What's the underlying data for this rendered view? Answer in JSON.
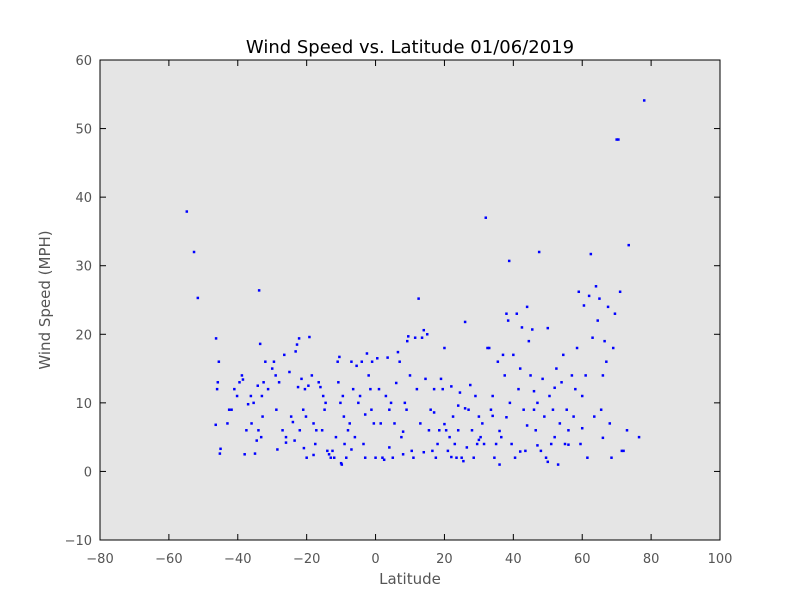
{
  "chart_data": {
    "type": "scatter",
    "title": "Wind Speed vs. Latitude 01/06/2019",
    "xlabel": "Latitude",
    "ylabel": "Wind Speed (MPH)",
    "xlim": [
      -80,
      100
    ],
    "ylim": [
      -10,
      60
    ],
    "xticks": [
      -80,
      -60,
      -40,
      -20,
      0,
      20,
      40,
      60,
      80,
      100
    ],
    "yticks": [
      -10,
      0,
      10,
      20,
      30,
      40,
      50,
      60
    ],
    "xtick_labels": [
      "−80",
      "−60",
      "−40",
      "−20",
      "0",
      "20",
      "40",
      "60",
      "80",
      "100"
    ],
    "ytick_labels": [
      "−10",
      "0",
      "10",
      "20",
      "30",
      "40",
      "50",
      "60"
    ],
    "grid": false,
    "colors": {
      "plot_background": "#e5e5e5",
      "marker": "#0000ff"
    },
    "series": [
      {
        "points": [
          [
            -54.8,
            37.9
          ],
          [
            -52.7,
            32.0
          ],
          [
            -51.6,
            25.3
          ],
          [
            -46.3,
            19.4
          ],
          [
            -46.0,
            12.0
          ],
          [
            -45.8,
            13.0
          ],
          [
            -45.5,
            16.0
          ],
          [
            -45.2,
            2.6
          ],
          [
            -45.0,
            3.3
          ],
          [
            -46.4,
            6.8
          ],
          [
            -43.0,
            7.0
          ],
          [
            -42.5,
            9.0
          ],
          [
            -41.8,
            9.0
          ],
          [
            -41.0,
            12.0
          ],
          [
            -40.2,
            11.0
          ],
          [
            -39.5,
            13.0
          ],
          [
            -38.8,
            14.0
          ],
          [
            -38.5,
            13.4
          ],
          [
            -38.0,
            2.5
          ],
          [
            -37.5,
            6.0
          ],
          [
            -37.0,
            9.8
          ],
          [
            -36.2,
            11.0
          ],
          [
            -36.0,
            7.0
          ],
          [
            -35.4,
            10.0
          ],
          [
            -35.0,
            2.6
          ],
          [
            -34.5,
            4.5
          ],
          [
            -34.2,
            12.5
          ],
          [
            -34.0,
            6.0
          ],
          [
            -33.8,
            26.4
          ],
          [
            -33.5,
            18.6
          ],
          [
            -33.2,
            5.0
          ],
          [
            -33.0,
            11.0
          ],
          [
            -32.8,
            8.0
          ],
          [
            -32.5,
            13.0
          ],
          [
            -32.0,
            16.0
          ],
          [
            -31.2,
            12.0
          ],
          [
            -30.0,
            15.0
          ],
          [
            -29.5,
            16.0
          ],
          [
            -29.0,
            14.0
          ],
          [
            -28.8,
            9.0
          ],
          [
            -28.5,
            3.2
          ],
          [
            -28.0,
            13.0
          ],
          [
            -27.0,
            6.0
          ],
          [
            -26.5,
            17.0
          ],
          [
            -26.0,
            5.0
          ],
          [
            -25.0,
            14.5
          ],
          [
            -24.5,
            8.0
          ],
          [
            -24.0,
            7.2
          ],
          [
            -23.5,
            4.5
          ],
          [
            -23.2,
            17.5
          ],
          [
            -22.8,
            18.5
          ],
          [
            -22.5,
            12.3
          ],
          [
            -22.2,
            19.4
          ],
          [
            -22.0,
            6.0
          ],
          [
            -21.5,
            13.5
          ],
          [
            -21.0,
            9.0
          ],
          [
            -20.8,
            3.4
          ],
          [
            -20.5,
            12.0
          ],
          [
            -20.2,
            8.0
          ],
          [
            -20.0,
            2.0
          ],
          [
            -19.5,
            12.5
          ],
          [
            -19.2,
            19.6
          ],
          [
            -18.5,
            14.0
          ],
          [
            -18.0,
            7.0
          ],
          [
            -17.5,
            4.0
          ],
          [
            -17.2,
            6.0
          ],
          [
            -16.5,
            13.0
          ],
          [
            -16.0,
            12.3
          ],
          [
            -15.5,
            6.0
          ],
          [
            -15.2,
            11.0
          ],
          [
            -14.8,
            9.0
          ],
          [
            -14.5,
            10.0
          ],
          [
            -14.0,
            3.0
          ],
          [
            -13.5,
            2.5
          ],
          [
            -13.0,
            2.0
          ],
          [
            -12.5,
            3.0
          ],
          [
            -12.0,
            2.0
          ],
          [
            -11.5,
            5.0
          ],
          [
            -11.0,
            16.0
          ],
          [
            -10.8,
            13.0
          ],
          [
            -10.5,
            16.7
          ],
          [
            -10.2,
            10.0
          ],
          [
            -10.0,
            1.2
          ],
          [
            -9.8,
            1.0
          ],
          [
            -9.5,
            11.0
          ],
          [
            -9.2,
            8.0
          ],
          [
            -9.0,
            4.0
          ],
          [
            -8.5,
            2.0
          ],
          [
            -8.0,
            6.0
          ],
          [
            -7.5,
            7.0
          ],
          [
            -7.0,
            16.0
          ],
          [
            -6.5,
            12.0
          ],
          [
            -6.0,
            5.0
          ],
          [
            -5.5,
            15.4
          ],
          [
            -5.0,
            10.0
          ],
          [
            -4.5,
            11.0
          ],
          [
            -4.0,
            16.0
          ],
          [
            -3.5,
            4.0
          ],
          [
            -3.0,
            2.0
          ],
          [
            -2.5,
            17.2
          ],
          [
            -2.0,
            14.0
          ],
          [
            -1.5,
            12.0
          ],
          [
            -1.2,
            9.0
          ],
          [
            -1.0,
            16.0
          ],
          [
            -0.5,
            7.0
          ],
          [
            0.0,
            2.0
          ],
          [
            0.5,
            16.5
          ],
          [
            1.0,
            12.0
          ],
          [
            1.5,
            7.0
          ],
          [
            2.0,
            2.0
          ],
          [
            2.5,
            1.7
          ],
          [
            3.0,
            11.0
          ],
          [
            3.5,
            16.6
          ],
          [
            4.0,
            9.0
          ],
          [
            4.5,
            10.0
          ],
          [
            5.0,
            2.0
          ],
          [
            5.5,
            7.0
          ],
          [
            6.0,
            12.9
          ],
          [
            6.5,
            17.4
          ],
          [
            7.0,
            16.0
          ],
          [
            7.5,
            5.0
          ],
          [
            8.0,
            2.5
          ],
          [
            8.5,
            10.0
          ],
          [
            9.0,
            9.0
          ],
          [
            9.2,
            19.0
          ],
          [
            9.5,
            19.7
          ],
          [
            10.0,
            14.0
          ],
          [
            10.5,
            3.0
          ],
          [
            11.0,
            2.0
          ],
          [
            11.5,
            19.5
          ],
          [
            12.0,
            12.0
          ],
          [
            12.5,
            25.2
          ],
          [
            13.0,
            7.0
          ],
          [
            13.5,
            19.5
          ],
          [
            14.0,
            20.6
          ],
          [
            14.5,
            13.5
          ],
          [
            15.0,
            20.0
          ],
          [
            15.5,
            6.0
          ],
          [
            16.0,
            9.0
          ],
          [
            16.5,
            3.0
          ],
          [
            17.0,
            12.0
          ],
          [
            17.5,
            2.0
          ],
          [
            18.0,
            4.0
          ],
          [
            18.5,
            6.0
          ],
          [
            19.0,
            13.5
          ],
          [
            19.5,
            12.0
          ],
          [
            20.0,
            18.0
          ],
          [
            20.5,
            6.0
          ],
          [
            21.0,
            3.0
          ],
          [
            21.5,
            5.0
          ],
          [
            22.0,
            12.4
          ],
          [
            22.5,
            8.0
          ],
          [
            23.0,
            4.0
          ],
          [
            23.5,
            2.0
          ],
          [
            24.0,
            6.0
          ],
          [
            24.5,
            11.5
          ],
          [
            25.0,
            2.0
          ],
          [
            25.5,
            1.5
          ],
          [
            26.0,
            21.8
          ],
          [
            26.5,
            3.5
          ],
          [
            27.0,
            9.0
          ],
          [
            27.5,
            12.6
          ],
          [
            28.0,
            6.0
          ],
          [
            28.5,
            2.0
          ],
          [
            29.0,
            11.0
          ],
          [
            29.5,
            4.0
          ],
          [
            30.0,
            8.0
          ],
          [
            30.5,
            5.0
          ],
          [
            31.0,
            7.0
          ],
          [
            31.5,
            4.0
          ],
          [
            32.0,
            37.0
          ],
          [
            32.5,
            18.0
          ],
          [
            33.0,
            18.0
          ],
          [
            33.5,
            9.0
          ],
          [
            34.0,
            11.0
          ],
          [
            34.5,
            2.0
          ],
          [
            35.0,
            4.0
          ],
          [
            35.5,
            16.0
          ],
          [
            36.0,
            1.0
          ],
          [
            36.5,
            5.0
          ],
          [
            37.0,
            17.0
          ],
          [
            37.5,
            14.0
          ],
          [
            38.0,
            23.0
          ],
          [
            38.5,
            22.0
          ],
          [
            38.8,
            30.7
          ],
          [
            39.0,
            10.0
          ],
          [
            39.5,
            4.0
          ],
          [
            40.0,
            17.0
          ],
          [
            40.5,
            2.0
          ],
          [
            41.0,
            23.0
          ],
          [
            41.5,
            12.0
          ],
          [
            42.0,
            15.0
          ],
          [
            42.5,
            21.0
          ],
          [
            43.0,
            9.0
          ],
          [
            43.5,
            3.0
          ],
          [
            44.0,
            24.0
          ],
          [
            44.5,
            19.0
          ],
          [
            45.0,
            14.0
          ],
          [
            45.5,
            20.7
          ],
          [
            46.0,
            9.0
          ],
          [
            46.5,
            6.0
          ],
          [
            47.0,
            10.0
          ],
          [
            47.5,
            32.0
          ],
          [
            48.0,
            3.0
          ],
          [
            48.5,
            13.5
          ],
          [
            49.0,
            8.0
          ],
          [
            49.5,
            2.0
          ],
          [
            50.0,
            20.9
          ],
          [
            50.5,
            11.0
          ],
          [
            51.0,
            4.0
          ],
          [
            51.5,
            9.0
          ],
          [
            52.0,
            5.0
          ],
          [
            52.5,
            15.0
          ],
          [
            53.0,
            1.0
          ],
          [
            53.5,
            7.0
          ],
          [
            54.0,
            13.0
          ],
          [
            54.5,
            17.0
          ],
          [
            55.0,
            4.0
          ],
          [
            55.5,
            9.0
          ],
          [
            56.0,
            6.0
          ],
          [
            57.0,
            14.0
          ],
          [
            57.5,
            8.0
          ],
          [
            58.0,
            12.0
          ],
          [
            58.5,
            18.0
          ],
          [
            59.0,
            26.2
          ],
          [
            59.5,
            4.0
          ],
          [
            60.0,
            11.0
          ],
          [
            60.5,
            24.2
          ],
          [
            61.0,
            14.0
          ],
          [
            61.5,
            2.0
          ],
          [
            62.0,
            25.6
          ],
          [
            62.5,
            31.7
          ],
          [
            63.0,
            19.5
          ],
          [
            63.5,
            8.0
          ],
          [
            64.0,
            27.0
          ],
          [
            64.5,
            22.0
          ],
          [
            65.0,
            25.2
          ],
          [
            65.5,
            9.0
          ],
          [
            66.0,
            14.0
          ],
          [
            66.5,
            19.0
          ],
          [
            67.0,
            16.0
          ],
          [
            67.5,
            24.0
          ],
          [
            68.0,
            7.0
          ],
          [
            68.5,
            2.0
          ],
          [
            69.0,
            18.0
          ],
          [
            69.5,
            23.0
          ],
          [
            70.0,
            48.4
          ],
          [
            70.5,
            48.4
          ],
          [
            71.0,
            26.2
          ],
          [
            71.5,
            3.0
          ],
          [
            72.0,
            3.0
          ],
          [
            73.0,
            6.0
          ],
          [
            73.5,
            33.0
          ],
          [
            76.5,
            5.0
          ],
          [
            78.0,
            54.1
          ],
          [
            -7.0,
            3.2
          ],
          [
            4.0,
            3.5
          ],
          [
            14.0,
            2.8
          ],
          [
            22.0,
            2.1
          ],
          [
            30.0,
            4.6
          ],
          [
            36.0,
            5.9
          ],
          [
            42.0,
            2.9
          ],
          [
            47.0,
            3.8
          ],
          [
            50.0,
            1.4
          ],
          [
            56.0,
            3.9
          ],
          [
            -26.0,
            4.2
          ],
          [
            -18.0,
            2.4
          ],
          [
            -3.0,
            8.3
          ],
          [
            8.0,
            5.8
          ],
          [
            17.0,
            8.6
          ],
          [
            26.0,
            9.2
          ],
          [
            34.0,
            8.1
          ],
          [
            44.0,
            6.7
          ],
          [
            60.0,
            6.3
          ],
          [
            66.0,
            4.9
          ],
          [
            20.0,
            6.9
          ],
          [
            24.0,
            9.6
          ],
          [
            38.0,
            7.9
          ],
          [
            46.0,
            11.7
          ],
          [
            52.0,
            12.2
          ]
        ]
      }
    ]
  }
}
